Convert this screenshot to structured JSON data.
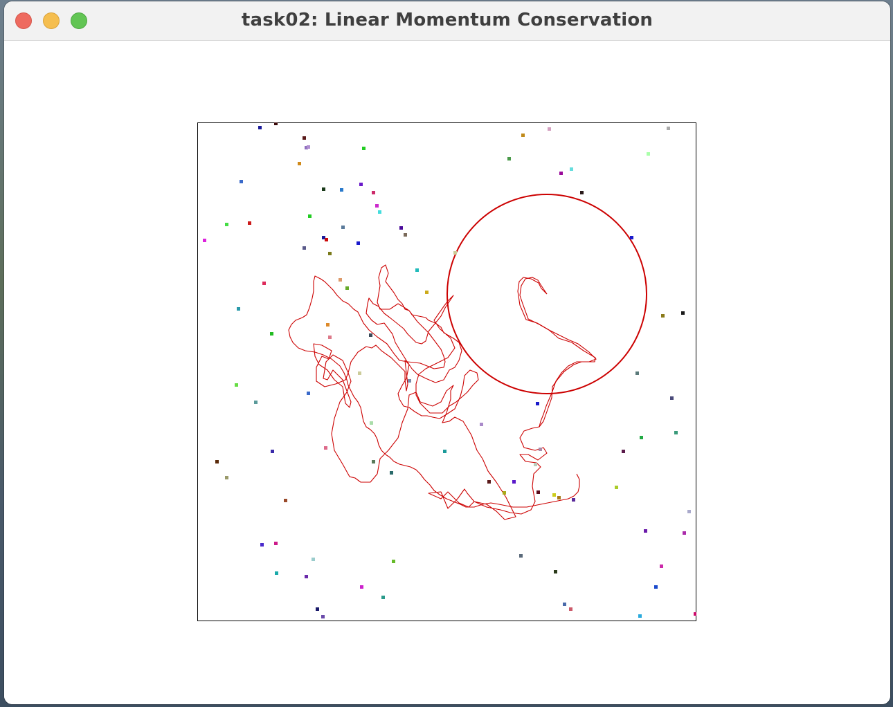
{
  "window": {
    "title": "task02: Linear Momentum Conservation",
    "controls": [
      "close",
      "minimize",
      "zoom"
    ]
  },
  "simulation": {
    "box_stroke": "#000000",
    "trail_color": "#cc0000",
    "circle_color": "#cc0000",
    "background": "#ffffff"
  }
}
